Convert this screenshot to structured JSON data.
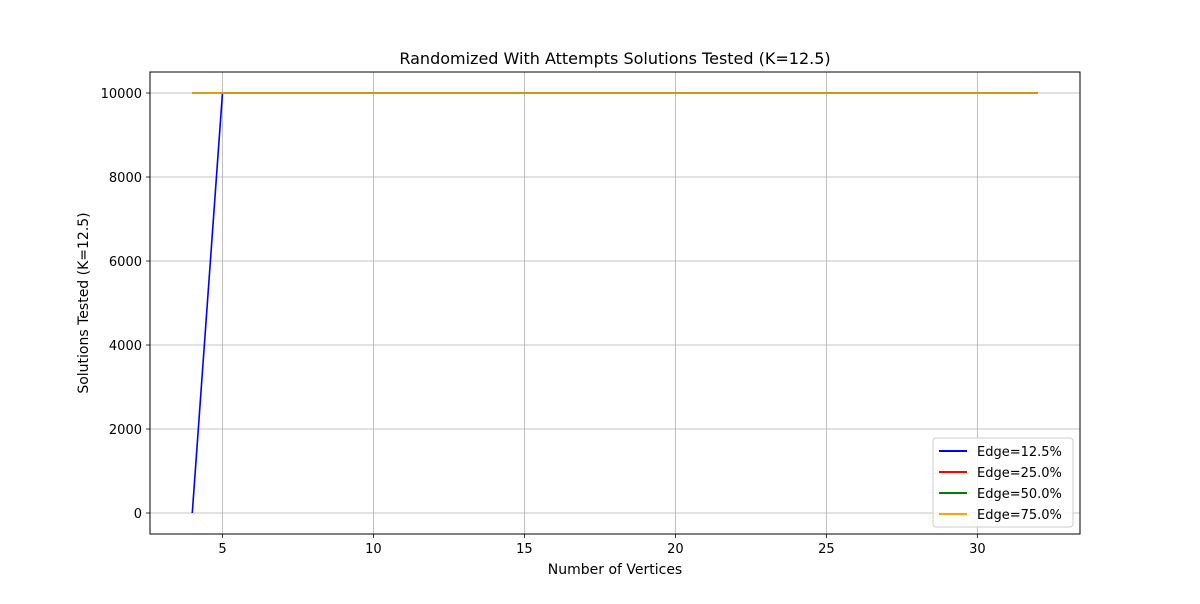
{
  "chart_data": {
    "type": "line",
    "title": "Randomized With Attempts Solutions Tested (K=12.5)",
    "xlabel": "Number of Vertices",
    "ylabel": "Solutions Tested (K=12.5)",
    "xlim": [
      2.6,
      33.4
    ],
    "ylim": [
      -500,
      10500
    ],
    "xticks": [
      5,
      10,
      15,
      20,
      25,
      30
    ],
    "yticks": [
      0,
      2000,
      4000,
      6000,
      8000,
      10000
    ],
    "grid": true,
    "legend_position": "lower-right",
    "series": [
      {
        "name": "Edge=12.5%",
        "color": "#0000ff",
        "x": [
          4,
          5,
          6,
          7,
          8,
          9,
          10,
          11,
          12,
          13,
          14,
          15,
          16,
          17,
          18,
          19,
          20,
          21,
          22,
          23,
          24,
          25,
          26,
          27,
          28,
          29,
          30,
          31,
          32
        ],
        "y": [
          0,
          10000,
          10000,
          10000,
          10000,
          10000,
          10000,
          10000,
          10000,
          10000,
          10000,
          10000,
          10000,
          10000,
          10000,
          10000,
          10000,
          10000,
          10000,
          10000,
          10000,
          10000,
          10000,
          10000,
          10000,
          10000,
          10000,
          10000,
          10000
        ]
      },
      {
        "name": "Edge=25.0%",
        "color": "#ff0000",
        "x": [
          4,
          5,
          6,
          7,
          8,
          9,
          10,
          11,
          12,
          13,
          14,
          15,
          16,
          17,
          18,
          19,
          20,
          21,
          22,
          23,
          24,
          25,
          26,
          27,
          28,
          29,
          30,
          31,
          32
        ],
        "y": [
          10000,
          10000,
          10000,
          10000,
          10000,
          10000,
          10000,
          10000,
          10000,
          10000,
          10000,
          10000,
          10000,
          10000,
          10000,
          10000,
          10000,
          10000,
          10000,
          10000,
          10000,
          10000,
          10000,
          10000,
          10000,
          10000,
          10000,
          10000,
          10000
        ]
      },
      {
        "name": "Edge=50.0%",
        "color": "#008000",
        "x": [
          4,
          5,
          6,
          7,
          8,
          9,
          10,
          11,
          12,
          13,
          14,
          15,
          16,
          17,
          18,
          19,
          20,
          21,
          22,
          23,
          24,
          25,
          26,
          27,
          28,
          29,
          30,
          31,
          32
        ],
        "y": [
          10000,
          10000,
          10000,
          10000,
          10000,
          10000,
          10000,
          10000,
          10000,
          10000,
          10000,
          10000,
          10000,
          10000,
          10000,
          10000,
          10000,
          10000,
          10000,
          10000,
          10000,
          10000,
          10000,
          10000,
          10000,
          10000,
          10000,
          10000,
          10000
        ]
      },
      {
        "name": "Edge=75.0%",
        "color": "#ffa500",
        "x": [
          4,
          5,
          6,
          7,
          8,
          9,
          10,
          11,
          12,
          13,
          14,
          15,
          16,
          17,
          18,
          19,
          20,
          21,
          22,
          23,
          24,
          25,
          26,
          27,
          28,
          29,
          30,
          31,
          32
        ],
        "y": [
          10000,
          10000,
          10000,
          10000,
          10000,
          10000,
          10000,
          10000,
          10000,
          10000,
          10000,
          10000,
          10000,
          10000,
          10000,
          10000,
          10000,
          10000,
          10000,
          10000,
          10000,
          10000,
          10000,
          10000,
          10000,
          10000,
          10000,
          10000,
          10000
        ]
      }
    ]
  }
}
